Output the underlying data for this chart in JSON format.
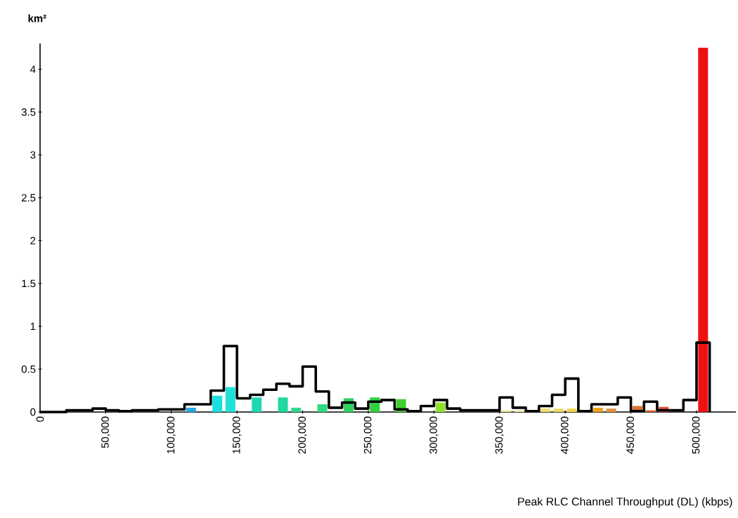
{
  "chart_data": {
    "type": "histogram",
    "xlabel": "Peak RLC Channel Throughput (DL) (kbps)",
    "ylabel": "km²",
    "bins": [
      0,
      10000,
      20000,
      30000,
      40000,
      50000,
      60000,
      70000,
      80000,
      90000,
      100000,
      110000,
      120000,
      130000,
      140000,
      150000,
      160000,
      170000,
      180000,
      190000,
      200000,
      210000,
      220000,
      230000,
      240000,
      250000,
      260000,
      270000,
      280000,
      290000,
      300000,
      310000,
      320000,
      330000,
      340000,
      350000,
      360000,
      370000,
      380000,
      390000,
      400000,
      410000,
      420000,
      430000,
      440000,
      450000,
      460000,
      470000,
      480000,
      490000,
      500000,
      510000
    ],
    "series": [
      {
        "values": [
          null,
          null,
          null,
          null,
          null,
          null,
          null,
          null,
          null,
          null,
          null,
          0.05,
          null,
          0.19,
          0.29,
          null,
          0.17,
          null,
          0.17,
          0.05,
          null,
          0.09,
          null,
          0.16,
          null,
          0.17,
          null,
          0.15,
          null,
          null,
          0.11,
          null,
          null,
          null,
          null,
          0.02,
          0.02,
          null,
          0.04,
          0.04,
          0.04,
          null,
          0.05,
          0.04,
          null,
          0.07,
          0.02,
          0.06,
          null,
          null,
          4.25
        ],
        "colors": [
          null,
          null,
          null,
          null,
          null,
          null,
          null,
          null,
          null,
          null,
          null,
          "#2aa8e0",
          null,
          "#18e0e0",
          "#20e0d8",
          null,
          "#20d8b0",
          null,
          "#20d8a0",
          "#30d890",
          null,
          "#30d880",
          null,
          "#30d060",
          null,
          "#30d040",
          null,
          "#40d030",
          null,
          null,
          "#90e030",
          null,
          null,
          null,
          null,
          "#f0e890",
          "#f0e8a0",
          null,
          "#f0e070",
          "#f0d860",
          "#f0d850",
          null,
          "#f0a020",
          "#e09040",
          null,
          "#e07030",
          "#e06030",
          "#e05030",
          null,
          null,
          "#ee1111"
        ]
      },
      {
        "type": "step",
        "color": "#000000",
        "x": [
          0,
          10000,
          20000,
          30000,
          40000,
          50000,
          60000,
          70000,
          80000,
          90000,
          100000,
          110000,
          120000,
          130000,
          140000,
          150000,
          160000,
          170000,
          180000,
          190000,
          200000,
          210000,
          220000,
          230000,
          240000,
          250000,
          260000,
          270000,
          280000,
          290000,
          300000,
          310000,
          320000,
          330000,
          340000,
          350000,
          360000,
          370000,
          380000,
          390000,
          400000,
          410000,
          420000,
          430000,
          440000,
          450000,
          460000,
          470000,
          480000,
          490000,
          500000,
          510000
        ],
        "values": [
          0,
          0,
          0.02,
          0.02,
          0.04,
          0.02,
          0.01,
          0.02,
          0.02,
          0.03,
          0.03,
          0.09,
          0.09,
          0.25,
          0.77,
          0.16,
          0.2,
          0.26,
          0.33,
          0.3,
          0.53,
          0.24,
          0.05,
          0.11,
          0.04,
          0.12,
          0.14,
          0.03,
          0.01,
          0.07,
          0.14,
          0.04,
          0.02,
          0.02,
          0.02,
          0.17,
          0.05,
          0.01,
          0.07,
          0.2,
          0.39,
          0.01,
          0.09,
          0.09,
          0.17,
          0.01,
          0.12,
          0.02,
          0.02,
          0.14,
          0.81,
          0
        ]
      }
    ],
    "xlim": [
      0,
      530000
    ],
    "ylim": [
      0,
      4.3
    ],
    "xticks": [
      0,
      {
        "value": 50000,
        "label": "50,000"
      },
      {
        "value": 100000,
        "label": "100,000"
      },
      {
        "value": 150000,
        "label": "150,000"
      },
      {
        "value": 200000,
        "label": "200,000"
      },
      {
        "value": 250000,
        "label": "250,000"
      },
      {
        "value": 300000,
        "label": "300,000"
      },
      {
        "value": 350000,
        "label": "350,000"
      },
      {
        "value": 400000,
        "label": "400,000"
      },
      {
        "value": 450000,
        "label": "450,000"
      },
      {
        "value": 500000,
        "label": "500,000"
      }
    ],
    "yticks": [
      0,
      0.5,
      1,
      1.5,
      2,
      2.5,
      3,
      3.5,
      4
    ],
    "grid": false
  }
}
